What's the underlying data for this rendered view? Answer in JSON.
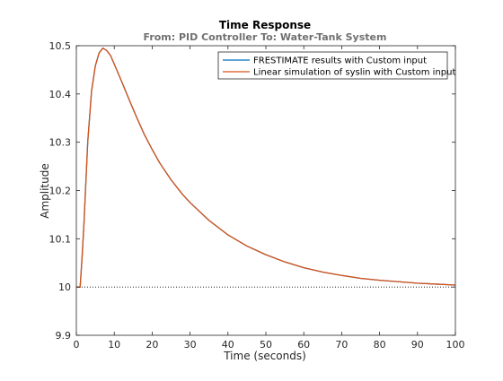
{
  "chart_data": {
    "type": "line",
    "title": "Time Response",
    "subtitle": "From: PID Controller  To: Water-Tank System",
    "xlabel": "Time (seconds)",
    "ylabel": "Amplitude",
    "xlim": [
      0,
      100
    ],
    "ylim": [
      9.9,
      10.5
    ],
    "xticks": [
      0,
      10,
      20,
      30,
      40,
      50,
      60,
      70,
      80,
      90,
      100
    ],
    "yticks": [
      9.9,
      10,
      10.1,
      10.2,
      10.3,
      10.4,
      10.5
    ],
    "xtick_labels": [
      "0",
      "10",
      "20",
      "30",
      "40",
      "50",
      "60",
      "70",
      "80",
      "90",
      "100"
    ],
    "ytick_labels": [
      "9.9",
      "10",
      "10.1",
      "10.2",
      "10.3",
      "10.4",
      "10.5"
    ],
    "grid": false,
    "legend_position": "top-right",
    "reference_line": {
      "y": 10,
      "style": "dotted",
      "color": "#000000"
    },
    "x": [
      0,
      0.5,
      1,
      1.5,
      2,
      3,
      4,
      5,
      6,
      7,
      8,
      9,
      10,
      12,
      14,
      16,
      18,
      20,
      22,
      25,
      28,
      30,
      35,
      40,
      45,
      50,
      55,
      60,
      65,
      70,
      75,
      80,
      85,
      90,
      95,
      100
    ],
    "series": [
      {
        "name": "FRESTIMATE results with Custom input",
        "color": "#0072BD",
        "values": [
          10.0,
          10.0,
          10.0,
          10.06,
          10.13,
          10.3,
          10.405,
          10.458,
          10.485,
          10.495,
          10.49,
          10.48,
          10.462,
          10.425,
          10.387,
          10.35,
          10.315,
          10.285,
          10.257,
          10.222,
          10.192,
          10.175,
          10.138,
          10.108,
          10.085,
          10.067,
          10.052,
          10.04,
          10.031,
          10.024,
          10.018,
          10.014,
          10.011,
          10.008,
          10.006,
          10.004
        ]
      },
      {
        "name": "Linear simulation of syslin with Custom input",
        "color": "#D95319",
        "values": [
          10.0,
          10.0,
          10.0,
          10.06,
          10.13,
          10.3,
          10.405,
          10.458,
          10.485,
          10.495,
          10.49,
          10.48,
          10.462,
          10.425,
          10.387,
          10.35,
          10.315,
          10.285,
          10.257,
          10.222,
          10.192,
          10.175,
          10.138,
          10.108,
          10.085,
          10.067,
          10.052,
          10.04,
          10.031,
          10.024,
          10.018,
          10.014,
          10.011,
          10.008,
          10.006,
          10.004
        ]
      }
    ]
  }
}
